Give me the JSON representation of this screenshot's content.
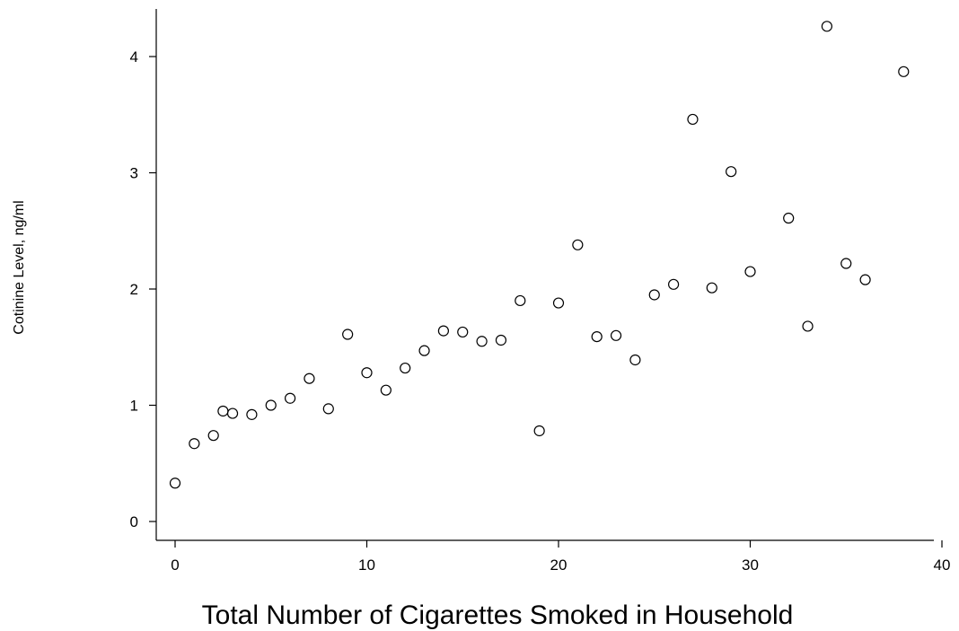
{
  "chart_data": {
    "type": "scatter",
    "title": "",
    "xlabel": "Total Number of Cigarettes Smoked in Household",
    "ylabel": "Cotinine Level, ng/ml",
    "xlim": [
      0,
      40
    ],
    "ylim": [
      0,
      4
    ],
    "xticks": [
      0,
      10,
      20,
      30,
      40
    ],
    "yticks": [
      0,
      1,
      2,
      3,
      4
    ],
    "xtick_labels": [
      "0",
      "10",
      "20",
      "30",
      "40"
    ],
    "ytick_labels": [
      "0",
      "1",
      "2",
      "3",
      "4"
    ],
    "grid": false,
    "legend": "none",
    "marker": "hollow-circle",
    "color": "#000000",
    "points": [
      {
        "x": 0,
        "y": 0.33
      },
      {
        "x": 1,
        "y": 0.67
      },
      {
        "x": 2,
        "y": 0.74
      },
      {
        "x": 2.5,
        "y": 0.95
      },
      {
        "x": 3,
        "y": 0.93
      },
      {
        "x": 4,
        "y": 0.92
      },
      {
        "x": 5,
        "y": 1.0
      },
      {
        "x": 6,
        "y": 1.06
      },
      {
        "x": 7,
        "y": 1.23
      },
      {
        "x": 8,
        "y": 0.97
      },
      {
        "x": 9,
        "y": 1.61
      },
      {
        "x": 10,
        "y": 1.28
      },
      {
        "x": 11,
        "y": 1.13
      },
      {
        "x": 12,
        "y": 1.32
      },
      {
        "x": 13,
        "y": 1.47
      },
      {
        "x": 14,
        "y": 1.64
      },
      {
        "x": 15,
        "y": 1.63
      },
      {
        "x": 16,
        "y": 1.55
      },
      {
        "x": 17,
        "y": 1.56
      },
      {
        "x": 18,
        "y": 1.9
      },
      {
        "x": 19,
        "y": 0.78
      },
      {
        "x": 20,
        "y": 1.88
      },
      {
        "x": 21,
        "y": 2.38
      },
      {
        "x": 22,
        "y": 1.59
      },
      {
        "x": 23,
        "y": 1.6
      },
      {
        "x": 24,
        "y": 1.39
      },
      {
        "x": 25,
        "y": 1.95
      },
      {
        "x": 26,
        "y": 2.04
      },
      {
        "x": 27,
        "y": 3.46
      },
      {
        "x": 28,
        "y": 2.01
      },
      {
        "x": 29,
        "y": 3.01
      },
      {
        "x": 30,
        "y": 2.15
      },
      {
        "x": 32,
        "y": 2.61
      },
      {
        "x": 33,
        "y": 1.68
      },
      {
        "x": 34,
        "y": 4.26
      },
      {
        "x": 35,
        "y": 2.22
      },
      {
        "x": 36,
        "y": 2.08
      },
      {
        "x": 38,
        "y": 3.87
      }
    ]
  }
}
